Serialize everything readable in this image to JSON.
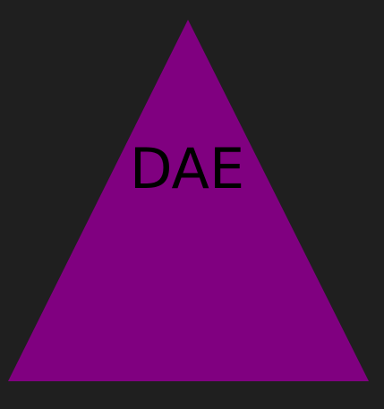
{
  "colors": {
    "background": "#1f1f1f",
    "triangle_fill": "#800080",
    "label_color": "#000000"
  },
  "shape": {
    "type": "triangle",
    "label": "DAE"
  }
}
